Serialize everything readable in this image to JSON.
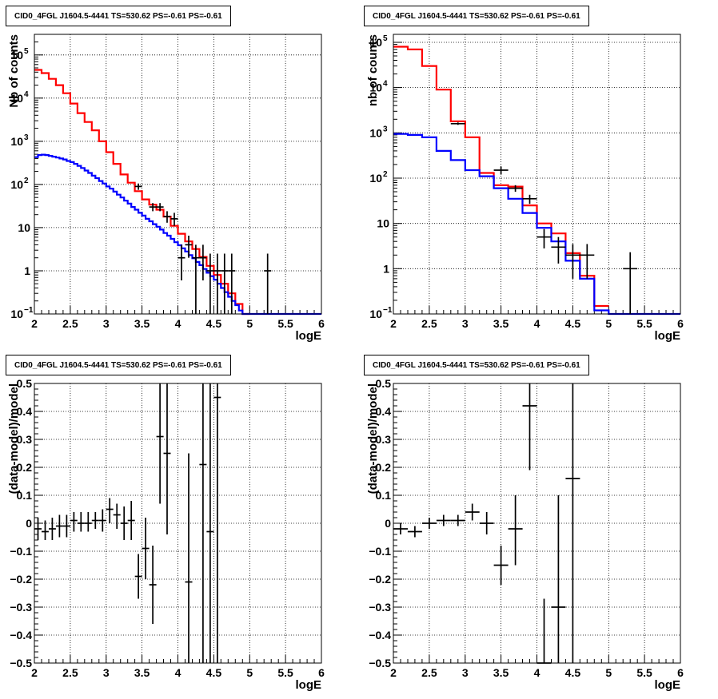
{
  "chart_data": [
    {
      "type": "line",
      "title": "CID0_4FGL J1604.5-4441 TS=530.62 PS=-0.61 PS=-0.61",
      "xlabel": "logE",
      "ylabel": "Nb of counts",
      "yscale": "log",
      "xlim": [
        2,
        6
      ],
      "ylim": [
        0.1,
        300000
      ],
      "grid": true,
      "xticks": [
        "2",
        "2.5",
        "3",
        "3.5",
        "4",
        "4.5",
        "5",
        "5.5",
        "6"
      ],
      "yticks": [
        {
          "v": 0.1,
          "base": "10",
          "exp": "−1"
        },
        {
          "v": 1,
          "base": "1",
          "exp": ""
        },
        {
          "v": 10,
          "base": "10",
          "exp": ""
        },
        {
          "v": 100,
          "base": "10",
          "exp": "2"
        },
        {
          "v": 1000,
          "base": "10",
          "exp": "3"
        },
        {
          "v": 10000,
          "base": "10",
          "exp": "4"
        },
        {
          "v": 100000,
          "base": "10",
          "exp": "5"
        }
      ],
      "series": [
        {
          "color": "#ff0000",
          "edges": [
            2,
            2.1,
            2.2,
            2.3,
            2.4,
            2.5,
            2.6,
            2.7,
            2.8,
            2.9,
            3,
            3.1,
            3.2,
            3.3,
            3.4,
            3.5,
            3.6,
            3.7,
            3.8,
            3.9,
            4,
            4.1,
            4.2,
            4.3,
            4.4,
            4.5,
            4.6,
            4.7,
            4.8,
            4.9,
            5
          ],
          "values": [
            45000,
            38000,
            28000,
            20000,
            13000,
            7500,
            4500,
            2800,
            1800,
            1000,
            560,
            300,
            170,
            110,
            70,
            45,
            34,
            26,
            18,
            11,
            7.2,
            4.8,
            3.2,
            2.1,
            1.3,
            0.8,
            0.5,
            0.3,
            0.17,
            0.1
          ]
        },
        {
          "color": "#0000ff",
          "edges": [
            2,
            2.05,
            2.1,
            2.15,
            2.2,
            2.25,
            2.3,
            2.35,
            2.4,
            2.45,
            2.5,
            2.55,
            2.6,
            2.65,
            2.7,
            2.75,
            2.8,
            2.85,
            2.9,
            2.95,
            3,
            3.05,
            3.1,
            3.15,
            3.2,
            3.25,
            3.3,
            3.35,
            3.4,
            3.45,
            3.5,
            3.55,
            3.6,
            3.65,
            3.7,
            3.75,
            3.8,
            3.85,
            3.9,
            3.95,
            4,
            4.05,
            4.1,
            4.15,
            4.2,
            4.25,
            4.3,
            4.35,
            4.4,
            4.45,
            4.5,
            4.55,
            4.6,
            4.65,
            4.7,
            4.75,
            4.8,
            4.85,
            4.9,
            4.95,
            5,
            5.05,
            5.1,
            5.15,
            5.2,
            5.25,
            5.3,
            5.35,
            5.4,
            5.45,
            5.5,
            5.55,
            5.6,
            5.65,
            5.7,
            5.75,
            5.8,
            5.85,
            5.9,
            5.95,
            6
          ],
          "values": [
            430,
            480,
            490,
            480,
            460,
            440,
            420,
            400,
            380,
            350,
            330,
            300,
            270,
            240,
            210,
            185,
            160,
            140,
            120,
            105,
            90,
            80,
            68,
            58,
            50,
            42,
            36,
            30,
            26,
            22,
            19,
            16,
            14,
            12,
            10.5,
            9,
            7.5,
            6.5,
            5.5,
            4.6,
            3.9,
            3.3,
            2.8,
            2.3,
            1.95,
            1.6,
            1.35,
            1.1,
            0.9,
            0.75,
            0.62,
            0.5,
            0.4,
            0.32,
            0.25,
            0.2,
            0.16,
            0.12,
            0.1,
            0.1,
            0.1,
            0.1,
            0.1,
            0.1,
            0.1,
            0.1,
            0.1,
            0.1,
            0.1,
            0.1,
            0.1,
            0.1,
            0.1,
            0.1,
            0.1,
            0.1,
            0.1,
            0.1,
            0.1,
            0.1
          ]
        }
      ],
      "points": [
        {
          "x": 3.45,
          "y": 90,
          "ylo": 75,
          "yhi": 105
        },
        {
          "x": 3.65,
          "y": 30,
          "ylo": 24,
          "yhi": 37
        },
        {
          "x": 3.75,
          "y": 30,
          "ylo": 24,
          "yhi": 37
        },
        {
          "x": 3.85,
          "y": 18,
          "ylo": 13,
          "yhi": 24
        },
        {
          "x": 3.95,
          "y": 16,
          "ylo": 11,
          "yhi": 22
        },
        {
          "x": 4.05,
          "y": 2,
          "ylo": 0.6,
          "yhi": 4
        },
        {
          "x": 4.15,
          "y": 4,
          "ylo": 2,
          "yhi": 6.5
        },
        {
          "x": 4.25,
          "y": 2,
          "ylo": 0.1,
          "yhi": 4
        },
        {
          "x": 4.35,
          "y": 2,
          "ylo": 0.6,
          "yhi": 4
        },
        {
          "x": 4.45,
          "y": 1,
          "ylo": 0.1,
          "yhi": 2.5
        },
        {
          "x": 4.55,
          "y": 1,
          "ylo": 0.1,
          "yhi": 2.5
        },
        {
          "x": 4.65,
          "y": 1,
          "ylo": 0.1,
          "yhi": 2.5
        },
        {
          "x": 4.75,
          "y": 1,
          "ylo": 0.1,
          "yhi": 2.5
        },
        {
          "x": 5.25,
          "y": 1,
          "ylo": 0.1,
          "yhi": 2.5
        }
      ]
    },
    {
      "type": "line",
      "title": "CID0_4FGL J1604.5-4441 TS=530.62 PS=-0.61 PS=-0.61",
      "xlabel": "logE",
      "ylabel": "nb of counts",
      "yscale": "log",
      "xlim": [
        2,
        6
      ],
      "ylim": [
        0.1,
        150000
      ],
      "grid": true,
      "xticks": [
        "2",
        "2.5",
        "3",
        "3.5",
        "4",
        "4.5",
        "5",
        "5.5",
        "6"
      ],
      "yticks": [
        {
          "v": 0.1,
          "base": "10",
          "exp": "−1"
        },
        {
          "v": 1,
          "base": "1",
          "exp": ""
        },
        {
          "v": 10,
          "base": "10",
          "exp": ""
        },
        {
          "v": 100,
          "base": "10",
          "exp": "2"
        },
        {
          "v": 1000,
          "base": "10",
          "exp": "3"
        },
        {
          "v": 10000,
          "base": "10",
          "exp": "4"
        },
        {
          "v": 100000,
          "base": "10",
          "exp": "5"
        }
      ],
      "series": [
        {
          "color": "#ff0000",
          "edges": [
            2,
            2.2,
            2.4,
            2.6,
            2.8,
            3,
            3.2,
            3.4,
            3.6,
            3.8,
            4,
            4.2,
            4.4,
            4.6,
            4.8,
            5
          ],
          "values": [
            80000,
            70000,
            30000,
            9000,
            1800,
            800,
            130,
            70,
            65,
            25,
            10,
            6,
            2.2,
            0.7,
            0.15
          ]
        },
        {
          "color": "#0000ff",
          "edges": [
            2,
            2.2,
            2.4,
            2.6,
            2.8,
            3,
            3.2,
            3.4,
            3.6,
            3.8,
            4,
            4.2,
            4.4,
            4.6,
            4.8,
            5,
            5.2,
            5.4,
            5.6,
            5.8,
            6
          ],
          "values": [
            950,
            900,
            800,
            400,
            250,
            150,
            110,
            60,
            35,
            17,
            8,
            4,
            1.5,
            0.6,
            0.12,
            0.1,
            0.1,
            0.1,
            0.1,
            0.1
          ]
        }
      ],
      "points": [
        {
          "x": 2.9,
          "y": 1600,
          "ylo": 1500,
          "yhi": 1700,
          "dx": 0.1
        },
        {
          "x": 3.5,
          "y": 150,
          "ylo": 120,
          "yhi": 180,
          "dx": 0.1
        },
        {
          "x": 3.7,
          "y": 60,
          "ylo": 50,
          "yhi": 70,
          "dx": 0.1
        },
        {
          "x": 3.9,
          "y": 35,
          "ylo": 27,
          "yhi": 43,
          "dx": 0.1
        },
        {
          "x": 4.1,
          "y": 5,
          "ylo": 2.8,
          "yhi": 7.5,
          "dx": 0.1
        },
        {
          "x": 4.3,
          "y": 3,
          "ylo": 1.3,
          "yhi": 5,
          "dx": 0.1
        },
        {
          "x": 4.5,
          "y": 2,
          "ylo": 0.6,
          "yhi": 3.5,
          "dx": 0.1
        },
        {
          "x": 4.7,
          "y": 2,
          "ylo": 0.6,
          "yhi": 3.5,
          "dx": 0.1
        },
        {
          "x": 5.3,
          "y": 1,
          "ylo": 0.1,
          "yhi": 2.3,
          "dx": 0.1
        }
      ]
    },
    {
      "type": "scatter",
      "title": "CID0_4FGL J1604.5-4441 TS=530.62 PS=-0.61 PS=-0.61",
      "xlabel": "logE",
      "ylabel": "(data-model)/model",
      "yscale": "linear",
      "xlim": [
        2,
        6
      ],
      "ylim": [
        -0.5,
        0.5
      ],
      "grid": true,
      "xticks": [
        "2",
        "2.5",
        "3",
        "3.5",
        "4",
        "4.5",
        "5",
        "5.5",
        "6"
      ],
      "yticks": [
        "−0.5",
        "−0.4",
        "−0.3",
        "−0.2",
        "−0.1",
        "0",
        "0.1",
        "0.2",
        "0.3",
        "0.4",
        "0.5"
      ],
      "points": [
        {
          "x": 2.05,
          "y": -0.02,
          "ylo": -0.06,
          "yhi": 0.02
        },
        {
          "x": 2.15,
          "y": -0.03,
          "ylo": -0.06,
          "yhi": 0.01
        },
        {
          "x": 2.25,
          "y": -0.02,
          "ylo": -0.06,
          "yhi": 0.02
        },
        {
          "x": 2.35,
          "y": -0.01,
          "ylo": -0.05,
          "yhi": 0.03
        },
        {
          "x": 2.45,
          "y": -0.01,
          "ylo": -0.05,
          "yhi": 0.03
        },
        {
          "x": 2.55,
          "y": 0.01,
          "ylo": -0.03,
          "yhi": 0.04
        },
        {
          "x": 2.65,
          "y": 0.0,
          "ylo": -0.03,
          "yhi": 0.04
        },
        {
          "x": 2.75,
          "y": 0.0,
          "ylo": -0.03,
          "yhi": 0.04
        },
        {
          "x": 2.85,
          "y": 0.01,
          "ylo": -0.02,
          "yhi": 0.04
        },
        {
          "x": 2.95,
          "y": 0.01,
          "ylo": -0.03,
          "yhi": 0.05
        },
        {
          "x": 3.05,
          "y": 0.05,
          "ylo": 0.0,
          "yhi": 0.09
        },
        {
          "x": 3.15,
          "y": 0.03,
          "ylo": -0.02,
          "yhi": 0.07
        },
        {
          "x": 3.25,
          "y": 0.0,
          "ylo": -0.06,
          "yhi": 0.06
        },
        {
          "x": 3.35,
          "y": 0.01,
          "ylo": -0.06,
          "yhi": 0.08
        },
        {
          "x": 3.45,
          "y": -0.19,
          "ylo": -0.27,
          "yhi": -0.11
        },
        {
          "x": 3.55,
          "y": -0.09,
          "ylo": -0.2,
          "yhi": 0.02
        },
        {
          "x": 3.65,
          "y": -0.22,
          "ylo": -0.36,
          "yhi": -0.08
        },
        {
          "x": 3.75,
          "y": 0.31,
          "ylo": 0.07,
          "yhi": 0.5
        },
        {
          "x": 3.85,
          "y": 0.25,
          "ylo": -0.04,
          "yhi": 0.5
        },
        {
          "x": 4.15,
          "y": -0.21,
          "ylo": -0.5,
          "yhi": 0.25
        },
        {
          "x": 4.35,
          "y": 0.21,
          "ylo": -0.5,
          "yhi": 0.5
        },
        {
          "x": 4.45,
          "y": -0.03,
          "ylo": -0.5,
          "yhi": 0.5
        },
        {
          "x": 4.55,
          "y": 0.45,
          "ylo": -0.5,
          "yhi": 0.5
        }
      ]
    },
    {
      "type": "scatter",
      "title": "CID0_4FGL J1604.5-4441 TS=530.62 PS=-0.61 PS=-0.61",
      "xlabel": "logE",
      "ylabel": "(data-model)/model",
      "yscale": "linear",
      "xlim": [
        2,
        6
      ],
      "ylim": [
        -0.5,
        0.5
      ],
      "grid": true,
      "xticks": [
        "2",
        "2.5",
        "3",
        "3.5",
        "4",
        "4.5",
        "5",
        "5.5",
        "6"
      ],
      "yticks": [
        "−0.5",
        "−0.4",
        "−0.3",
        "−0.2",
        "−0.1",
        "0",
        "0.1",
        "0.2",
        "0.3",
        "0.4",
        "0.5"
      ],
      "points": [
        {
          "x": 2.1,
          "y": -0.02,
          "ylo": -0.04,
          "yhi": 0.0,
          "dx": 0.1
        },
        {
          "x": 2.3,
          "y": -0.03,
          "ylo": -0.05,
          "yhi": -0.01,
          "dx": 0.1
        },
        {
          "x": 2.5,
          "y": 0.0,
          "ylo": -0.02,
          "yhi": 0.02,
          "dx": 0.1
        },
        {
          "x": 2.7,
          "y": 0.01,
          "ylo": -0.01,
          "yhi": 0.03,
          "dx": 0.1
        },
        {
          "x": 2.9,
          "y": 0.01,
          "ylo": -0.01,
          "yhi": 0.03,
          "dx": 0.1
        },
        {
          "x": 3.1,
          "y": 0.04,
          "ylo": 0.01,
          "yhi": 0.07,
          "dx": 0.1
        },
        {
          "x": 3.3,
          "y": 0.0,
          "ylo": -0.04,
          "yhi": 0.04,
          "dx": 0.1
        },
        {
          "x": 3.5,
          "y": -0.15,
          "ylo": -0.22,
          "yhi": -0.08,
          "dx": 0.1
        },
        {
          "x": 3.7,
          "y": -0.02,
          "ylo": -0.15,
          "yhi": 0.1,
          "dx": 0.1
        },
        {
          "x": 3.9,
          "y": 0.42,
          "ylo": 0.19,
          "yhi": 0.5,
          "dx": 0.1
        },
        {
          "x": 4.1,
          "y": -0.5,
          "ylo": -0.5,
          "yhi": -0.27,
          "dx": 0.1
        },
        {
          "x": 4.3,
          "y": -0.3,
          "ylo": -0.5,
          "yhi": 0.1,
          "dx": 0.1
        },
        {
          "x": 4.5,
          "y": 0.16,
          "ylo": -0.5,
          "yhi": 0.5,
          "dx": 0.1
        }
      ]
    }
  ]
}
